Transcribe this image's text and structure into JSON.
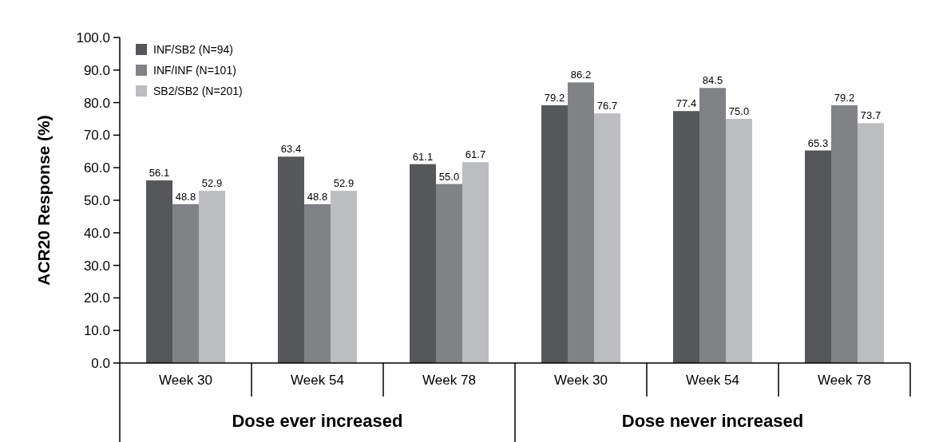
{
  "chart_data": {
    "type": "bar",
    "ylabel": "ACR20 Response (%)",
    "categories": [
      "Week 30",
      "Week 54",
      "Week 78",
      "Week 30",
      "Week 54",
      "Week 78"
    ],
    "series": [
      {
        "name": "INF/SB2 (N=94)",
        "color": "#555759",
        "values": [
          56.1,
          63.4,
          61.1,
          79.2,
          77.4,
          65.3
        ],
        "value_labels": [
          "56.1",
          "63.4",
          "61.1",
          "79.2",
          "77.4",
          "65.3"
        ]
      },
      {
        "name": "INF/INF (N=101)",
        "color": "#808285",
        "values": [
          48.8,
          48.8,
          55.0,
          86.2,
          84.5,
          79.2
        ],
        "value_labels": [
          "48.8",
          "48.8",
          "55.0",
          "86.2",
          "84.5",
          "79.2"
        ]
      },
      {
        "name": "SB2/SB2 (N=201)",
        "color": "#bcbdbf",
        "values": [
          52.9,
          52.9,
          61.7,
          76.7,
          75.0,
          73.7
        ],
        "value_labels": [
          "52.9",
          "52.9",
          "61.7",
          "76.7",
          "75.0",
          "73.7"
        ]
      }
    ],
    "ylim": [
      0,
      100
    ],
    "yticks": [
      {
        "value": 0,
        "label": "0.0"
      },
      {
        "value": 10,
        "label": "10.0"
      },
      {
        "value": 20,
        "label": "20.0"
      },
      {
        "value": 30,
        "label": "30.0"
      },
      {
        "value": 40,
        "label": "40.0"
      },
      {
        "value": 50,
        "label": "50.0"
      },
      {
        "value": 60,
        "label": "60.0"
      },
      {
        "value": 70,
        "label": "70.0"
      },
      {
        "value": 80,
        "label": "80.0"
      },
      {
        "value": 90,
        "label": "90.0"
      },
      {
        "value": 100,
        "label": "100.0"
      }
    ],
    "annotations": [
      "Dose ever increased",
      "Dose never increased"
    ],
    "legend": "top left",
    "grid": false
  }
}
